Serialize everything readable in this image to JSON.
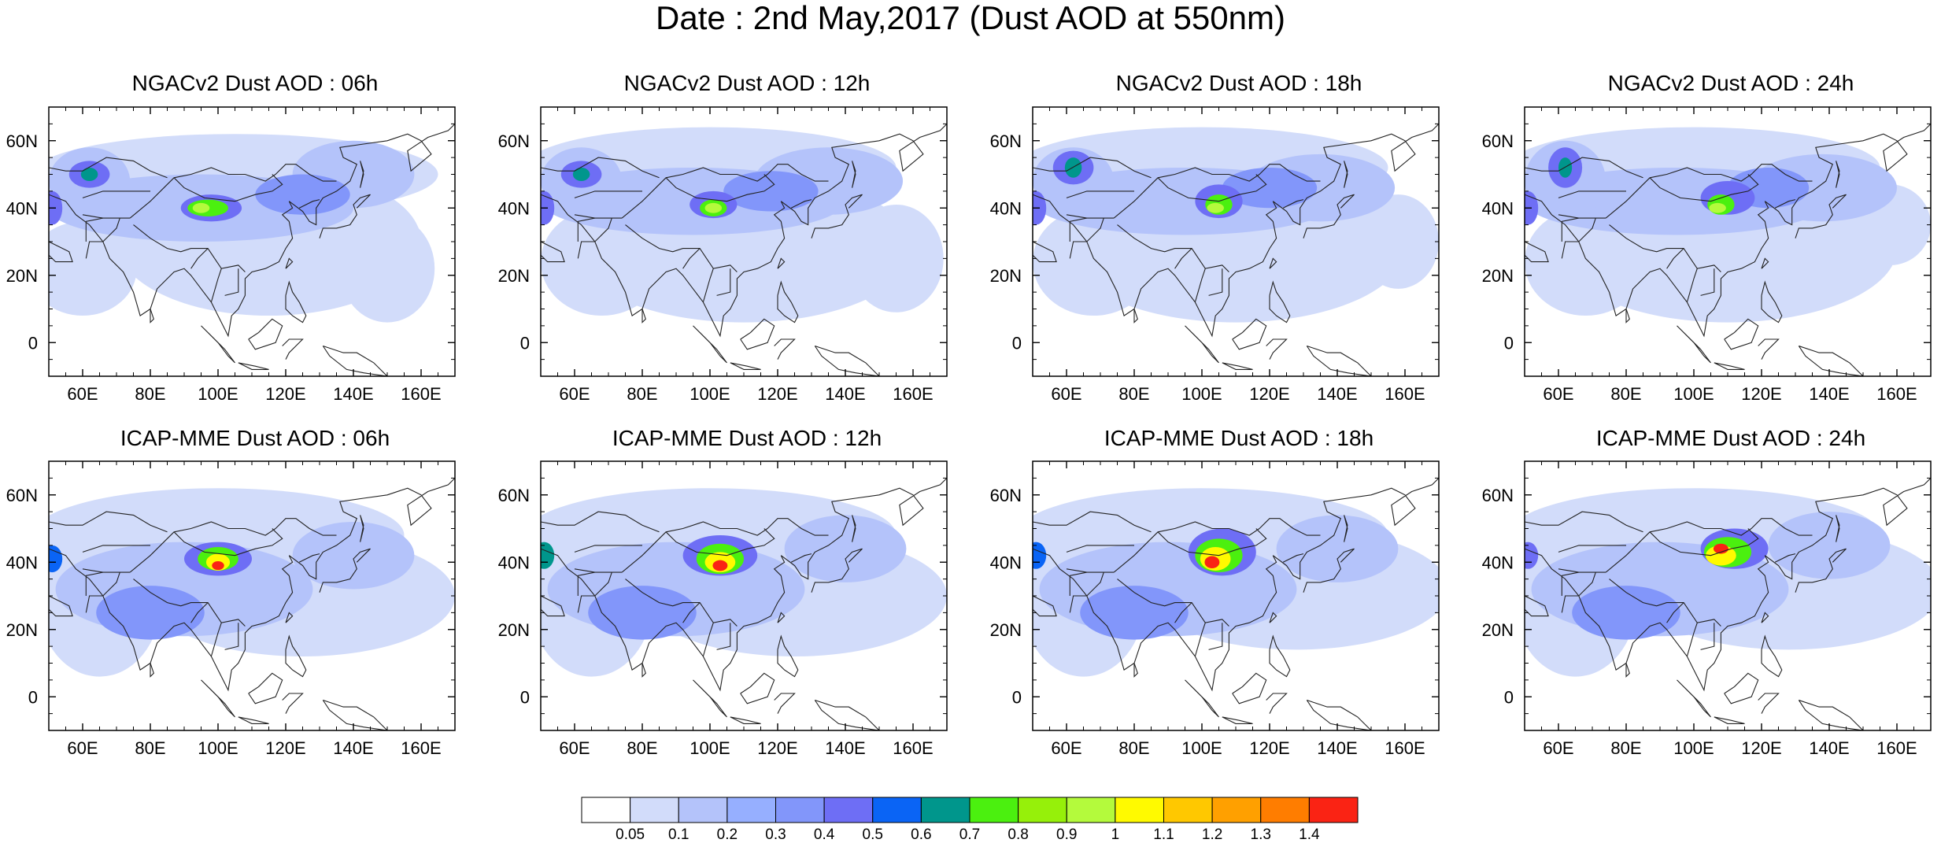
{
  "title": "Date : 2nd May,2017 (Dust AOD at 550nm)",
  "chart_data": {
    "type": "heatmap",
    "variable": "Dust AOD at 550nm",
    "date": "2nd May,2017",
    "x_axis": {
      "range": [
        50,
        170
      ],
      "ticks": [
        60,
        80,
        100,
        120,
        140,
        160
      ],
      "tick_labels": [
        "60E",
        "80E",
        "100E",
        "120E",
        "140E",
        "160E"
      ]
    },
    "y_axis": {
      "range": [
        -10,
        70
      ],
      "ticks": [
        0,
        20,
        40,
        60
      ],
      "tick_labels": [
        "0",
        "20N",
        "40N",
        "60N"
      ]
    },
    "colorbar": {
      "levels": [
        0.05,
        0.1,
        0.2,
        0.3,
        0.4,
        0.5,
        0.6,
        0.7,
        0.8,
        0.9,
        1,
        1.1,
        1.2,
        1.3,
        1.4
      ],
      "labels": [
        "0.05",
        "0.1",
        "0.2",
        "0.3",
        "0.4",
        "0.5",
        "0.6",
        "0.7",
        "0.8",
        "0.9",
        "1",
        "1.1",
        "1.2",
        "1.3",
        "1.4"
      ],
      "colors": [
        "#ffffff",
        "#d2dcfa",
        "#b4c3fa",
        "#96afff",
        "#8296fa",
        "#6e6ef5",
        "#0a64f5",
        "#00968c",
        "#4bf00f",
        "#96f00a",
        "#b4fa3c",
        "#fffa00",
        "#ffc800",
        "#ffa000",
        "#ff7d00",
        "#fa2314"
      ]
    },
    "panels": [
      {
        "title": "NGACv2 Dust AOD : 06h",
        "features": [
          {
            "lon": 60,
            "lat": 22,
            "rx": 16,
            "ry": 14,
            "value": 0.08
          },
          {
            "lon": 115,
            "lat": 30,
            "rx": 45,
            "ry": 22,
            "value": 0.08
          },
          {
            "lon": 150,
            "lat": 22,
            "rx": 14,
            "ry": 16,
            "value": 0.08
          },
          {
            "lon": 105,
            "lat": 50,
            "rx": 60,
            "ry": 12,
            "value": 0.08
          },
          {
            "lon": 95,
            "lat": 40,
            "rx": 45,
            "ry": 10,
            "value": 0.15
          },
          {
            "lon": 62,
            "lat": 48,
            "rx": 12,
            "ry": 10,
            "value": 0.15
          },
          {
            "lon": 140,
            "lat": 50,
            "rx": 18,
            "ry": 10,
            "value": 0.15
          },
          {
            "lon": 125,
            "lat": 44,
            "rx": 14,
            "ry": 6,
            "value": 0.35
          },
          {
            "lon": 62,
            "lat": 50,
            "rx": 6,
            "ry": 4,
            "value": 0.45
          },
          {
            "lon": 62,
            "lat": 50,
            "rx": 2.5,
            "ry": 2,
            "value": 0.65
          },
          {
            "lon": 51,
            "lat": 40,
            "rx": 3,
            "ry": 5,
            "value": 0.45
          },
          {
            "lon": 98,
            "lat": 40,
            "rx": 9,
            "ry": 4,
            "value": 0.45
          },
          {
            "lon": 97,
            "lat": 40,
            "rx": 6,
            "ry": 2.5,
            "value": 0.75
          },
          {
            "lon": 95,
            "lat": 40,
            "rx": 2.5,
            "ry": 1.5,
            "value": 0.95
          }
        ]
      },
      {
        "title": "NGACv2 Dust AOD : 12h",
        "features": [
          {
            "lon": 68,
            "lat": 24,
            "rx": 18,
            "ry": 16,
            "value": 0.08
          },
          {
            "lon": 110,
            "lat": 28,
            "rx": 50,
            "ry": 22,
            "value": 0.08
          },
          {
            "lon": 155,
            "lat": 25,
            "rx": 14,
            "ry": 16,
            "value": 0.08
          },
          {
            "lon": 100,
            "lat": 52,
            "rx": 55,
            "ry": 12,
            "value": 0.08
          },
          {
            "lon": 95,
            "lat": 42,
            "rx": 45,
            "ry": 10,
            "value": 0.15
          },
          {
            "lon": 62,
            "lat": 48,
            "rx": 12,
            "ry": 10,
            "value": 0.15
          },
          {
            "lon": 135,
            "lat": 48,
            "rx": 22,
            "ry": 10,
            "value": 0.15
          },
          {
            "lon": 118,
            "lat": 45,
            "rx": 14,
            "ry": 6,
            "value": 0.35
          },
          {
            "lon": 62,
            "lat": 50,
            "rx": 6,
            "ry": 4,
            "value": 0.45
          },
          {
            "lon": 62,
            "lat": 50,
            "rx": 2.5,
            "ry": 2,
            "value": 0.65
          },
          {
            "lon": 51,
            "lat": 40,
            "rx": 3,
            "ry": 5,
            "value": 0.45
          },
          {
            "lon": 101,
            "lat": 41,
            "rx": 7,
            "ry": 4,
            "value": 0.45
          },
          {
            "lon": 101,
            "lat": 40,
            "rx": 4,
            "ry": 2.5,
            "value": 0.75
          },
          {
            "lon": 101,
            "lat": 40,
            "rx": 2.5,
            "ry": 1.5,
            "value": 0.95
          }
        ]
      },
      {
        "title": "NGACv2 Dust AOD : 18h",
        "features": [
          {
            "lon": 68,
            "lat": 24,
            "rx": 18,
            "ry": 16,
            "value": 0.08
          },
          {
            "lon": 110,
            "lat": 28,
            "rx": 50,
            "ry": 22,
            "value": 0.08
          },
          {
            "lon": 158,
            "lat": 30,
            "rx": 12,
            "ry": 14,
            "value": 0.08
          },
          {
            "lon": 100,
            "lat": 52,
            "rx": 55,
            "ry": 12,
            "value": 0.08
          },
          {
            "lon": 95,
            "lat": 42,
            "rx": 45,
            "ry": 10,
            "value": 0.15
          },
          {
            "lon": 62,
            "lat": 48,
            "rx": 12,
            "ry": 10,
            "value": 0.15
          },
          {
            "lon": 135,
            "lat": 46,
            "rx": 22,
            "ry": 10,
            "value": 0.15
          },
          {
            "lon": 120,
            "lat": 46,
            "rx": 14,
            "ry": 6,
            "value": 0.35
          },
          {
            "lon": 62,
            "lat": 52,
            "rx": 6,
            "ry": 5,
            "value": 0.45
          },
          {
            "lon": 62,
            "lat": 52,
            "rx": 2.5,
            "ry": 3,
            "value": 0.65
          },
          {
            "lon": 51,
            "lat": 40,
            "rx": 3,
            "ry": 5,
            "value": 0.45
          },
          {
            "lon": 105,
            "lat": 42,
            "rx": 7,
            "ry": 5,
            "value": 0.45
          },
          {
            "lon": 105,
            "lat": 41,
            "rx": 4,
            "ry": 3,
            "value": 0.75
          },
          {
            "lon": 104,
            "lat": 40,
            "rx": 2.5,
            "ry": 1.5,
            "value": 0.95
          }
        ]
      },
      {
        "title": "NGACv2 Dust AOD : 24h",
        "features": [
          {
            "lon": 68,
            "lat": 24,
            "rx": 18,
            "ry": 16,
            "value": 0.08
          },
          {
            "lon": 110,
            "lat": 28,
            "rx": 50,
            "ry": 22,
            "value": 0.08
          },
          {
            "lon": 158,
            "lat": 35,
            "rx": 12,
            "ry": 12,
            "value": 0.08
          },
          {
            "lon": 100,
            "lat": 52,
            "rx": 55,
            "ry": 12,
            "value": 0.08
          },
          {
            "lon": 95,
            "lat": 42,
            "rx": 45,
            "ry": 10,
            "value": 0.15
          },
          {
            "lon": 62,
            "lat": 48,
            "rx": 12,
            "ry": 12,
            "value": 0.15
          },
          {
            "lon": 138,
            "lat": 46,
            "rx": 22,
            "ry": 10,
            "value": 0.15
          },
          {
            "lon": 122,
            "lat": 46,
            "rx": 12,
            "ry": 6,
            "value": 0.35
          },
          {
            "lon": 62,
            "lat": 52,
            "rx": 5,
            "ry": 6,
            "value": 0.45
          },
          {
            "lon": 62,
            "lat": 52,
            "rx": 2,
            "ry": 3,
            "value": 0.65
          },
          {
            "lon": 51,
            "lat": 40,
            "rx": 3,
            "ry": 5,
            "value": 0.45
          },
          {
            "lon": 110,
            "lat": 43,
            "rx": 8,
            "ry": 5,
            "value": 0.45
          },
          {
            "lon": 108,
            "lat": 41,
            "rx": 4,
            "ry": 3,
            "value": 0.75
          },
          {
            "lon": 107,
            "lat": 40,
            "rx": 2.5,
            "ry": 1.5,
            "value": 0.95
          }
        ]
      },
      {
        "title": "ICAP-MME Dust AOD : 06h",
        "features": [
          {
            "lon": 65,
            "lat": 28,
            "rx": 18,
            "ry": 22,
            "value": 0.08
          },
          {
            "lon": 125,
            "lat": 30,
            "rx": 45,
            "ry": 18,
            "value": 0.08
          },
          {
            "lon": 100,
            "lat": 48,
            "rx": 55,
            "ry": 14,
            "value": 0.08
          },
          {
            "lon": 90,
            "lat": 32,
            "rx": 38,
            "ry": 14,
            "value": 0.15
          },
          {
            "lon": 140,
            "lat": 42,
            "rx": 18,
            "ry": 10,
            "value": 0.15
          },
          {
            "lon": 80,
            "lat": 25,
            "rx": 16,
            "ry": 8,
            "value": 0.35
          },
          {
            "lon": 51,
            "lat": 41,
            "rx": 3,
            "ry": 4,
            "value": 0.55
          },
          {
            "lon": 100,
            "lat": 41,
            "rx": 10,
            "ry": 5,
            "value": 0.45
          },
          {
            "lon": 100,
            "lat": 41,
            "rx": 6,
            "ry": 3.5,
            "value": 0.75
          },
          {
            "lon": 100,
            "lat": 40,
            "rx": 3.5,
            "ry": 2.5,
            "value": 1.05
          },
          {
            "lon": 100,
            "lat": 39,
            "rx": 1.8,
            "ry": 1.3,
            "value": 1.45
          }
        ]
      },
      {
        "title": "ICAP-MME Dust AOD : 12h",
        "features": [
          {
            "lon": 65,
            "lat": 28,
            "rx": 18,
            "ry": 22,
            "value": 0.08
          },
          {
            "lon": 125,
            "lat": 30,
            "rx": 45,
            "ry": 18,
            "value": 0.08
          },
          {
            "lon": 100,
            "lat": 48,
            "rx": 55,
            "ry": 14,
            "value": 0.08
          },
          {
            "lon": 90,
            "lat": 32,
            "rx": 38,
            "ry": 14,
            "value": 0.15
          },
          {
            "lon": 140,
            "lat": 44,
            "rx": 18,
            "ry": 10,
            "value": 0.15
          },
          {
            "lon": 80,
            "lat": 25,
            "rx": 16,
            "ry": 8,
            "value": 0.35
          },
          {
            "lon": 51,
            "lat": 42,
            "rx": 3,
            "ry": 4,
            "value": 0.65
          },
          {
            "lon": 103,
            "lat": 42,
            "rx": 11,
            "ry": 6,
            "value": 0.45
          },
          {
            "lon": 103,
            "lat": 41,
            "rx": 7,
            "ry": 4.5,
            "value": 0.75
          },
          {
            "lon": 103,
            "lat": 40,
            "rx": 4.5,
            "ry": 3,
            "value": 1.05
          },
          {
            "lon": 103,
            "lat": 39,
            "rx": 2.2,
            "ry": 1.6,
            "value": 1.45
          }
        ]
      },
      {
        "title": "ICAP-MME Dust AOD : 18h",
        "features": [
          {
            "lon": 65,
            "lat": 28,
            "rx": 18,
            "ry": 22,
            "value": 0.08
          },
          {
            "lon": 128,
            "lat": 32,
            "rx": 45,
            "ry": 18,
            "value": 0.08
          },
          {
            "lon": 100,
            "lat": 48,
            "rx": 55,
            "ry": 14,
            "value": 0.08
          },
          {
            "lon": 90,
            "lat": 32,
            "rx": 38,
            "ry": 14,
            "value": 0.15
          },
          {
            "lon": 140,
            "lat": 44,
            "rx": 18,
            "ry": 10,
            "value": 0.15
          },
          {
            "lon": 80,
            "lat": 25,
            "rx": 16,
            "ry": 8,
            "value": 0.35
          },
          {
            "lon": 51,
            "lat": 42,
            "rx": 3,
            "ry": 4,
            "value": 0.55
          },
          {
            "lon": 106,
            "lat": 43,
            "rx": 10,
            "ry": 7,
            "value": 0.45
          },
          {
            "lon": 105,
            "lat": 42,
            "rx": 7,
            "ry": 5,
            "value": 0.75
          },
          {
            "lon": 104,
            "lat": 41,
            "rx": 4.5,
            "ry": 3.5,
            "value": 1.05
          },
          {
            "lon": 103,
            "lat": 40,
            "rx": 2.2,
            "ry": 1.8,
            "value": 1.45
          }
        ]
      },
      {
        "title": "ICAP-MME Dust AOD : 24h",
        "features": [
          {
            "lon": 65,
            "lat": 28,
            "rx": 18,
            "ry": 22,
            "value": 0.08
          },
          {
            "lon": 128,
            "lat": 32,
            "rx": 45,
            "ry": 18,
            "value": 0.08
          },
          {
            "lon": 100,
            "lat": 48,
            "rx": 55,
            "ry": 14,
            "value": 0.08
          },
          {
            "lon": 90,
            "lat": 32,
            "rx": 38,
            "ry": 14,
            "value": 0.15
          },
          {
            "lon": 140,
            "lat": 45,
            "rx": 18,
            "ry": 10,
            "value": 0.15
          },
          {
            "lon": 80,
            "lat": 25,
            "rx": 16,
            "ry": 8,
            "value": 0.35
          },
          {
            "lon": 51,
            "lat": 42,
            "rx": 3,
            "ry": 4,
            "value": 0.45
          },
          {
            "lon": 112,
            "lat": 44,
            "rx": 10,
            "ry": 6,
            "value": 0.45
          },
          {
            "lon": 110,
            "lat": 43,
            "rx": 7,
            "ry": 4.5,
            "value": 0.75
          },
          {
            "lon": 108,
            "lat": 42,
            "rx": 4.5,
            "ry": 3,
            "value": 1.05
          },
          {
            "lon": 108,
            "lat": 44,
            "rx": 2.2,
            "ry": 1.5,
            "value": 1.45
          }
        ]
      }
    ]
  }
}
